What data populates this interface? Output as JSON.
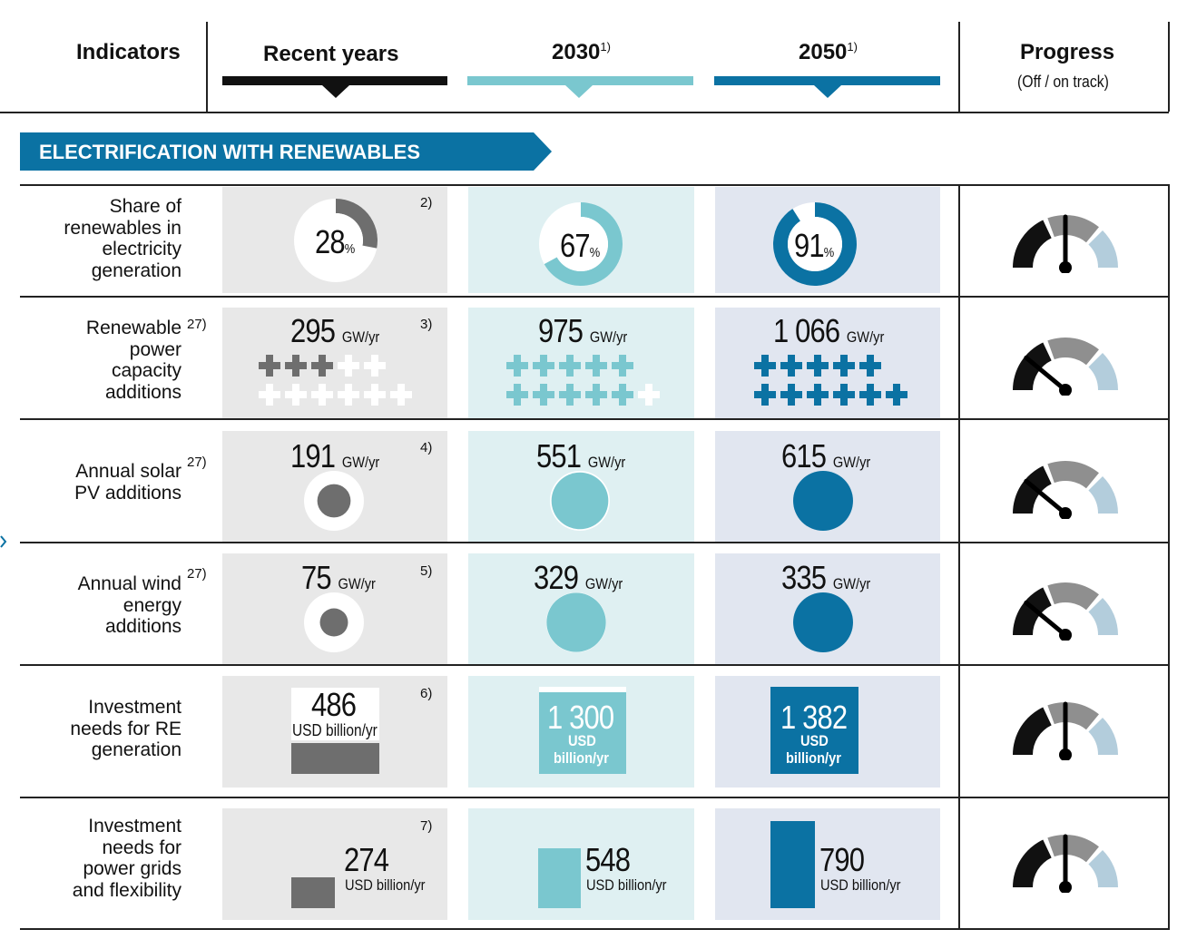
{
  "header": {
    "indicators": "Indicators",
    "recent": "Recent years",
    "y2030": "2030",
    "y2050": "2050",
    "footnote1": "1)",
    "progress": "Progress",
    "progress_sub": "(Off / on track)"
  },
  "section": {
    "title": "ELECTRIFICATION WITH RENEWABLES"
  },
  "colors": {
    "recent": "#6e6e6e",
    "c2030": "#7ac7cf",
    "c2050": "#0b72a3",
    "banner": "#0b72a3",
    "gauge_dark": "#111111",
    "gauge_mid": "#8f8f8f",
    "gauge_light": "#b3cddc"
  },
  "rows": [
    {
      "label": [
        "Share of",
        "renewables in",
        "electricity",
        "generation"
      ],
      "label_sup": "",
      "note": "2)",
      "recent": {
        "value": "28",
        "unit": "%",
        "share": 0.28
      },
      "y2030": {
        "value": "67",
        "unit": "%",
        "share": 0.67
      },
      "y2050": {
        "value": "91",
        "unit": "%",
        "share": 0.91
      },
      "needle_pct": 0.5
    },
    {
      "label": [
        "Renewable",
        "power",
        "capacity",
        "additions"
      ],
      "label_sup": "27)",
      "note": "3)",
      "recent": {
        "value": "295",
        "unit": "GW/yr",
        "filled": 3,
        "total": 11
      },
      "y2030": {
        "value": "975",
        "unit": "GW/yr",
        "filled": 10,
        "total": 11
      },
      "y2050": {
        "value": "1 066",
        "unit": "GW/yr",
        "filled": 11,
        "total": 11
      },
      "needle_pct": 0.22
    },
    {
      "label": [
        "Annual solar",
        "PV additions"
      ],
      "label_sup": "27)",
      "note": "4)",
      "recent": {
        "value": "191",
        "unit": "GW/yr",
        "ratio": 0.31
      },
      "y2030": {
        "value": "551",
        "unit": "GW/yr",
        "ratio": 0.9
      },
      "y2050": {
        "value": "615",
        "unit": "GW/yr",
        "ratio": 1.0
      },
      "needle_pct": 0.22
    },
    {
      "label": [
        "Annual wind",
        "energy",
        "additions"
      ],
      "label_sup": "27)",
      "note": "5)",
      "recent": {
        "value": "75",
        "unit": "GW/yr",
        "ratio": 0.22
      },
      "y2030": {
        "value": "329",
        "unit": "GW/yr",
        "ratio": 0.98
      },
      "y2050": {
        "value": "335",
        "unit": "GW/yr",
        "ratio": 1.0
      },
      "needle_pct": 0.22
    },
    {
      "label": [
        "Investment",
        "needs for RE",
        "generation"
      ],
      "label_sup": "",
      "note": "6)",
      "recent": {
        "value": "486",
        "unit": "USD billion/yr",
        "ratio": 0.35
      },
      "y2030": {
        "value": "1 300",
        "unit": "USD",
        "unit2": "billion/yr",
        "ratio": 0.94
      },
      "y2050": {
        "value": "1 382",
        "unit": "USD",
        "unit2": "billion/yr",
        "ratio": 1.0
      },
      "needle_pct": 0.5
    },
    {
      "label": [
        "Investment",
        "needs for",
        "power grids",
        "and flexibility"
      ],
      "label_sup": "",
      "note": "7)",
      "recent": {
        "value": "274",
        "unit": "USD billion/yr",
        "ratio": 0.35
      },
      "y2030": {
        "value": "548",
        "unit": "USD billion/yr",
        "ratio": 0.69
      },
      "y2050": {
        "value": "790",
        "unit": "USD billion/yr",
        "ratio": 1.0
      },
      "needle_pct": 0.5
    }
  ]
}
